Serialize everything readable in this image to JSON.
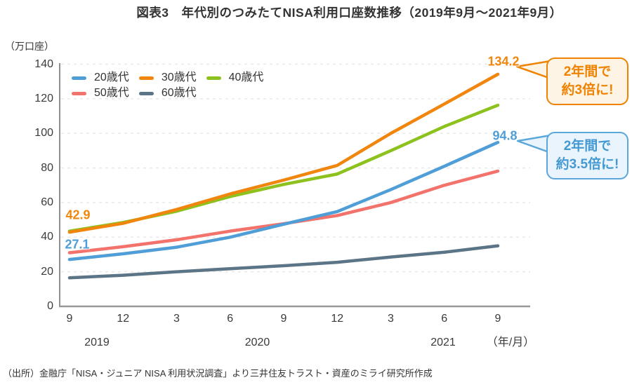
{
  "title": "図表3　年代別のつみたてNISA利用口座数推移（2019年9月～2021年9月）",
  "y_axis_unit": "（万口座）",
  "x_axis_unit": "（年/月）",
  "chart_data": {
    "type": "line",
    "x_tick_labels": [
      "9",
      "12",
      "3",
      "6",
      "9",
      "12",
      "3",
      "6",
      "9"
    ],
    "year_labels": [
      "2019",
      "2020",
      "2021"
    ],
    "y_ticks": [
      0,
      20,
      40,
      60,
      80,
      100,
      120,
      140
    ],
    "ylim": [
      0,
      140
    ],
    "grid": "horizontal-dashed",
    "legend_position": "top-left-inside",
    "series": [
      {
        "name": "20歳代",
        "key": "20s",
        "color": "#4f9ed7",
        "values": [
          27.1,
          30.4,
          34.2,
          40,
          47.5,
          54.8,
          67.5,
          81,
          94.8
        ]
      },
      {
        "name": "30歳代",
        "key": "30s",
        "color": "#f0860e",
        "values": [
          42.9,
          48,
          56,
          65,
          73,
          81.5,
          100,
          117,
          134.2
        ]
      },
      {
        "name": "40歳代",
        "key": "40s",
        "color": "#8dc21e",
        "values": [
          43.5,
          48.5,
          55,
          63.5,
          70.5,
          76.5,
          90,
          104,
          116.3
        ]
      },
      {
        "name": "50歳代",
        "key": "50s",
        "color": "#f3726b",
        "values": [
          31,
          34.5,
          38.5,
          43.5,
          47.8,
          52.5,
          60,
          70,
          78.2
        ]
      },
      {
        "name": "60歳代",
        "key": "60s",
        "color": "#5b7486",
        "values": [
          16.5,
          18,
          20,
          21.8,
          23.5,
          25.5,
          28.5,
          31.3,
          35
        ]
      }
    ],
    "annotations": [
      {
        "text": "42.9",
        "color": "#f0860e",
        "series": "30歳代",
        "point": "2019-9"
      },
      {
        "text": "27.1",
        "color": "#4f9ed7",
        "series": "20歳代",
        "point": "2019-9"
      },
      {
        "text": "134.2",
        "color": "#f0860e",
        "series": "30歳代",
        "point": "2021-9"
      },
      {
        "text": "94.8",
        "color": "#4f9ed7",
        "series": "20歳代",
        "point": "2021-9"
      }
    ]
  },
  "callouts": [
    {
      "line1": "2年間で",
      "line2": "約3倍に!",
      "border_color": "#ef8200",
      "fill_color": "#fdf4e5",
      "text_color": "#ef8200"
    },
    {
      "line1": "2年間で",
      "line2": "約3.5倍に!",
      "border_color": "#5ba7dc",
      "fill_color": "#eaf4fc",
      "text_color": "#4599d3"
    }
  ],
  "source": "（出所）金融庁「NISA・ジュニア NISA 利用状況調査」より三井住友トラスト・資産のミライ研究所作成"
}
